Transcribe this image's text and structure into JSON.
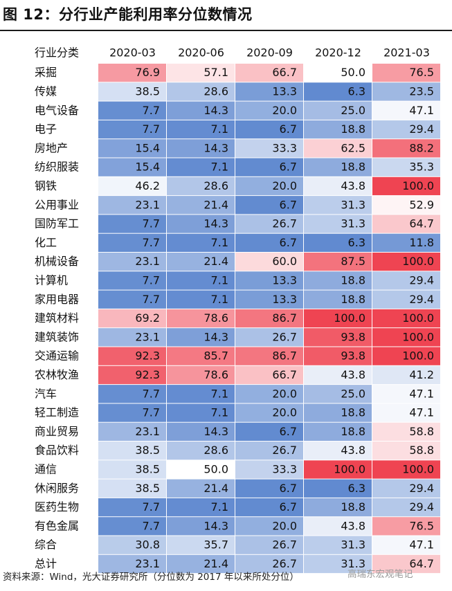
{
  "title": "图 12：分行业产能利用率分位数情况",
  "source": "资料来源：Wind，光大证券研究所（分位数为 2017 年以来所处分位）",
  "watermark": "高瑞东宏观笔记",
  "colors": {
    "low": "#4A79C9",
    "mid": "#FFFFFF",
    "high": "#EF4452"
  },
  "chart_data": {
    "type": "heatmap",
    "title": "图 12：分行业产能利用率分位数情况",
    "corner_label": "行业分类",
    "columns": [
      "2020-03",
      "2020-06",
      "2020-09",
      "2020-12",
      "2021-03"
    ],
    "scale": {
      "min": 0,
      "max": 100
    },
    "rows": [
      {
        "label": "采掘",
        "values": [
          76.9,
          57.1,
          66.7,
          50.0,
          76.5
        ]
      },
      {
        "label": "传媒",
        "values": [
          38.5,
          28.6,
          13.3,
          6.3,
          23.5
        ]
      },
      {
        "label": "电气设备",
        "values": [
          7.7,
          14.3,
          20.0,
          25.0,
          47.1
        ]
      },
      {
        "label": "电子",
        "values": [
          7.7,
          7.1,
          6.7,
          18.8,
          29.4
        ]
      },
      {
        "label": "房地产",
        "values": [
          15.4,
          14.3,
          33.3,
          62.5,
          88.2
        ]
      },
      {
        "label": "纺织服装",
        "values": [
          15.4,
          7.1,
          6.7,
          18.8,
          35.3
        ]
      },
      {
        "label": "钢铁",
        "values": [
          46.2,
          28.6,
          20.0,
          43.8,
          100.0
        ]
      },
      {
        "label": "公用事业",
        "values": [
          23.1,
          21.4,
          6.7,
          31.3,
          52.9
        ]
      },
      {
        "label": "国防军工",
        "values": [
          7.7,
          14.3,
          26.7,
          31.3,
          64.7
        ]
      },
      {
        "label": "化工",
        "values": [
          7.7,
          7.1,
          6.7,
          6.3,
          11.8
        ]
      },
      {
        "label": "机械设备",
        "values": [
          23.1,
          21.4,
          60.0,
          87.5,
          100.0
        ]
      },
      {
        "label": "计算机",
        "values": [
          7.7,
          7.1,
          13.3,
          18.8,
          29.4
        ]
      },
      {
        "label": "家用电器",
        "values": [
          7.7,
          7.1,
          13.3,
          18.8,
          29.4
        ]
      },
      {
        "label": "建筑材料",
        "values": [
          69.2,
          78.6,
          86.7,
          100.0,
          100.0
        ]
      },
      {
        "label": "建筑装饰",
        "values": [
          23.1,
          14.3,
          26.7,
          93.8,
          100.0
        ]
      },
      {
        "label": "交通运输",
        "values": [
          92.3,
          85.7,
          86.7,
          93.8,
          100.0
        ]
      },
      {
        "label": "农林牧渔",
        "values": [
          92.3,
          78.6,
          66.7,
          43.8,
          41.2
        ]
      },
      {
        "label": "汽车",
        "values": [
          7.7,
          7.1,
          20.0,
          25.0,
          47.1
        ]
      },
      {
        "label": "轻工制造",
        "values": [
          7.7,
          7.1,
          20.0,
          18.8,
          47.1
        ]
      },
      {
        "label": "商业贸易",
        "values": [
          23.1,
          14.3,
          6.7,
          18.8,
          58.8
        ]
      },
      {
        "label": "食品饮料",
        "values": [
          38.5,
          28.6,
          26.7,
          43.8,
          58.8
        ]
      },
      {
        "label": "通信",
        "values": [
          38.5,
          50.0,
          33.3,
          100.0,
          100.0
        ]
      },
      {
        "label": "休闲服务",
        "values": [
          38.5,
          21.4,
          6.7,
          6.3,
          29.4
        ]
      },
      {
        "label": "医药生物",
        "values": [
          7.7,
          7.1,
          6.7,
          18.8,
          29.4
        ]
      },
      {
        "label": "有色金属",
        "values": [
          7.7,
          14.3,
          20.0,
          43.8,
          76.5
        ]
      },
      {
        "label": "综合",
        "values": [
          30.8,
          35.7,
          26.7,
          31.3,
          47.1
        ]
      },
      {
        "label": "总计",
        "values": [
          23.1,
          21.4,
          26.7,
          31.3,
          64.7
        ]
      }
    ]
  }
}
